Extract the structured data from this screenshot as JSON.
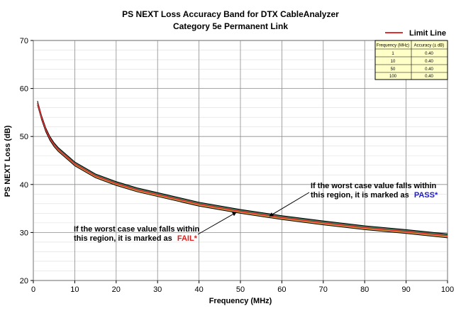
{
  "chart_data": {
    "type": "line",
    "title": "PS NEXT Loss Accuracy Band for DTX CableAnalyzer",
    "subtitle": "Category 5e Permanent Link",
    "xlabel": "Frequency (MHz)",
    "ylabel": "PS NEXT Loss (dB)",
    "xlim": [
      0,
      100
    ],
    "ylim": [
      20,
      70
    ],
    "xticks": [
      "0",
      "10",
      "20",
      "30",
      "40",
      "50",
      "60",
      "70",
      "80",
      "90",
      "100"
    ],
    "yticks": [
      "20",
      "30",
      "40",
      "50",
      "60",
      "70"
    ],
    "grid": true,
    "legend": {
      "label": "Limit Line",
      "color": "#e03030",
      "position": "top-right"
    },
    "x": [
      1,
      2,
      3,
      4,
      5,
      6,
      8,
      10,
      15,
      20,
      25,
      30,
      40,
      50,
      60,
      70,
      80,
      90,
      100
    ],
    "series": [
      {
        "name": "Limit Line",
        "color": "#e03030",
        "values": [
          57.0,
          53.9,
          51.4,
          49.6,
          48.3,
          47.3,
          45.8,
          44.3,
          41.8,
          40.2,
          38.9,
          37.9,
          35.9,
          34.4,
          33.1,
          32.0,
          31.0,
          30.2,
          29.3
        ]
      },
      {
        "color": "#000000",
        "values": [
          57.4,
          54.3,
          51.8,
          50.0,
          48.7,
          47.7,
          46.2,
          44.7,
          42.2,
          40.6,
          39.3,
          38.3,
          36.3,
          34.8,
          33.5,
          32.4,
          31.4,
          30.6,
          29.7
        ]
      },
      {
        "color": "#000000",
        "values": [
          56.6,
          53.5,
          51.0,
          49.2,
          47.9,
          46.9,
          45.4,
          43.9,
          41.4,
          39.8,
          38.5,
          37.5,
          35.5,
          34.0,
          32.7,
          31.6,
          30.6,
          29.8,
          28.9
        ]
      }
    ],
    "band_fill": {
      "upper": "#1e5e3a",
      "lower": "#d08a1a"
    },
    "table": {
      "headers": [
        "Frequency (MHz)",
        "Accuracy (± dB)"
      ],
      "rows": [
        [
          "1",
          "0.40"
        ],
        [
          "10",
          "0.40"
        ],
        [
          "50",
          "0.40"
        ],
        [
          "100",
          "0.40"
        ]
      ],
      "background": "#ffffc8"
    },
    "annotations": {
      "pass": {
        "line1": "If the worst case value falls within",
        "line2_prefix": "this region, it is marked as",
        "keyword": "PASS*",
        "keyword_color": "#1a1ad8",
        "x": 57,
        "y": 33.4
      },
      "fail": {
        "line1": "If the worst case value falls within",
        "line2_prefix": "this region, it is marked as",
        "keyword": "FAIL*",
        "keyword_color": "#e02020",
        "x": 49,
        "y": 34.2
      }
    }
  }
}
